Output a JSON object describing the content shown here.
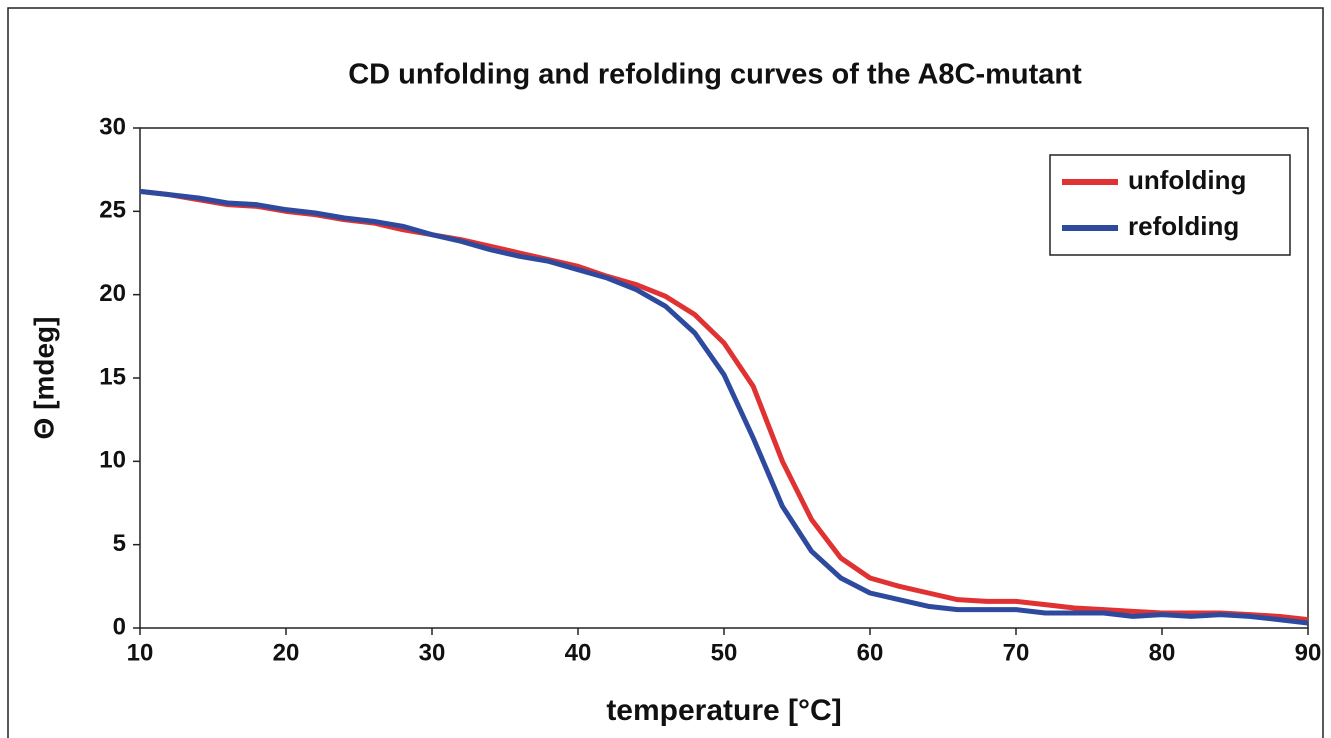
{
  "chart_data": {
    "type": "line",
    "title": "CD unfolding and refolding curves of the A8C-mutant",
    "x_label": "temperature [°C]",
    "y_label": "Θ [mdeg]",
    "x": [
      10,
      12,
      14,
      16,
      18,
      20,
      22,
      24,
      26,
      28,
      30,
      32,
      34,
      36,
      38,
      40,
      42,
      44,
      46,
      48,
      50,
      52,
      54,
      56,
      58,
      60,
      62,
      64,
      66,
      68,
      70,
      72,
      74,
      76,
      78,
      80,
      82,
      84,
      86,
      88,
      90
    ],
    "series": [
      {
        "name": "unfolding",
        "color": "#e03232",
        "values": [
          26.2,
          26.0,
          25.7,
          25.4,
          25.3,
          25.0,
          24.8,
          24.5,
          24.3,
          23.9,
          23.6,
          23.3,
          22.9,
          22.5,
          22.1,
          21.7,
          21.1,
          20.6,
          19.9,
          18.8,
          17.1,
          14.5,
          10.0,
          6.5,
          4.2,
          3.0,
          2.5,
          2.1,
          1.7,
          1.6,
          1.6,
          1.4,
          1.2,
          1.1,
          1.0,
          0.9,
          0.9,
          0.9,
          0.8,
          0.7,
          0.5
        ]
      },
      {
        "name": "refolding",
        "color": "#2e4a9e",
        "values": [
          26.2,
          26.0,
          25.8,
          25.5,
          25.4,
          25.1,
          24.9,
          24.6,
          24.4,
          24.1,
          23.6,
          23.2,
          22.7,
          22.3,
          22.0,
          21.5,
          21.0,
          20.3,
          19.3,
          17.7,
          15.2,
          11.4,
          7.3,
          4.6,
          3.0,
          2.1,
          1.7,
          1.3,
          1.1,
          1.1,
          1.1,
          0.9,
          0.9,
          0.9,
          0.7,
          0.8,
          0.7,
          0.8,
          0.7,
          0.5,
          0.3
        ]
      }
    ],
    "xlim": [
      10,
      90
    ],
    "xticks": [
      10,
      20,
      30,
      40,
      50,
      60,
      70,
      80,
      90
    ],
    "ylim": [
      0,
      30
    ],
    "yticks": [
      0,
      5,
      10,
      15,
      20,
      25,
      30
    ],
    "grid": false,
    "legend": "upper right"
  }
}
